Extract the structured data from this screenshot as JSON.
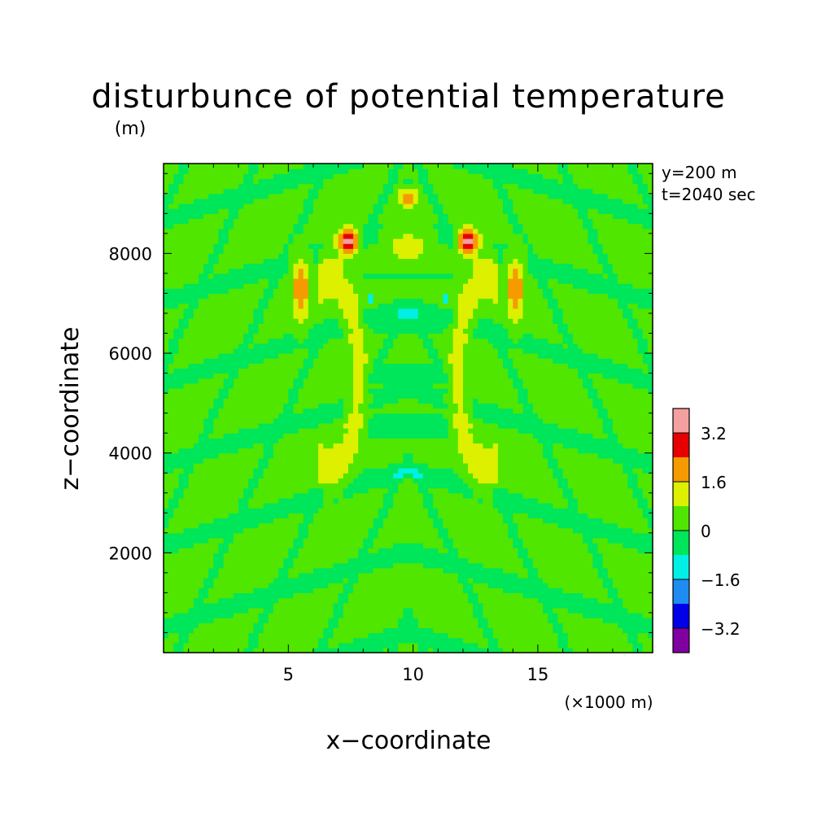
{
  "chart_data": {
    "type": "heatmap",
    "title": "disturbunce of potential temperature",
    "unit_label": "(m)",
    "xlabel": "x−coordinate",
    "ylabel": "z−coordinate",
    "x_unit": "(×1000 m)",
    "xlim": [
      0,
      19.6
    ],
    "ylim": [
      0,
      9800
    ],
    "x_ticks": [
      5,
      10,
      15
    ],
    "x_tick_labels": [
      "5",
      "10",
      "15"
    ],
    "y_ticks": [
      2000,
      4000,
      6000,
      8000
    ],
    "y_tick_labels": [
      "2000",
      "4000",
      "6000",
      "8000"
    ],
    "annotations": [
      "y=200 m",
      "t=2040 sec"
    ],
    "colorbar": {
      "levels": [
        -4.0,
        -3.2,
        -2.4,
        -1.6,
        -0.8,
        0,
        0.8,
        1.6,
        2.4,
        3.2,
        4.0
      ],
      "colors": [
        "#8000a0",
        "#0000e6",
        "#1e8cf0",
        "#00f0e6",
        "#00e65a",
        "#50e600",
        "#dcf000",
        "#f59b00",
        "#e60000",
        "#f5a0a0"
      ],
      "tick_labels": [
        "3.2",
        "1.6",
        "0",
        "−1.6",
        "−3.2"
      ]
    },
    "field": {
      "description_free": true,
      "background_level": 0.2,
      "features": [
        {
          "kind": "crescent",
          "side": "left",
          "value": 1.0
        },
        {
          "kind": "crescent",
          "side": "right",
          "value": 1.0
        },
        {
          "kind": "core",
          "side": "left",
          "value": 2.0
        },
        {
          "kind": "core",
          "side": "right",
          "value": 2.0
        },
        {
          "kind": "peak",
          "side": "left",
          "value": 3.6
        },
        {
          "kind": "peak",
          "side": "right",
          "value": 3.6
        },
        {
          "kind": "cap",
          "side": "center",
          "value": 1.8
        }
      ]
    }
  }
}
